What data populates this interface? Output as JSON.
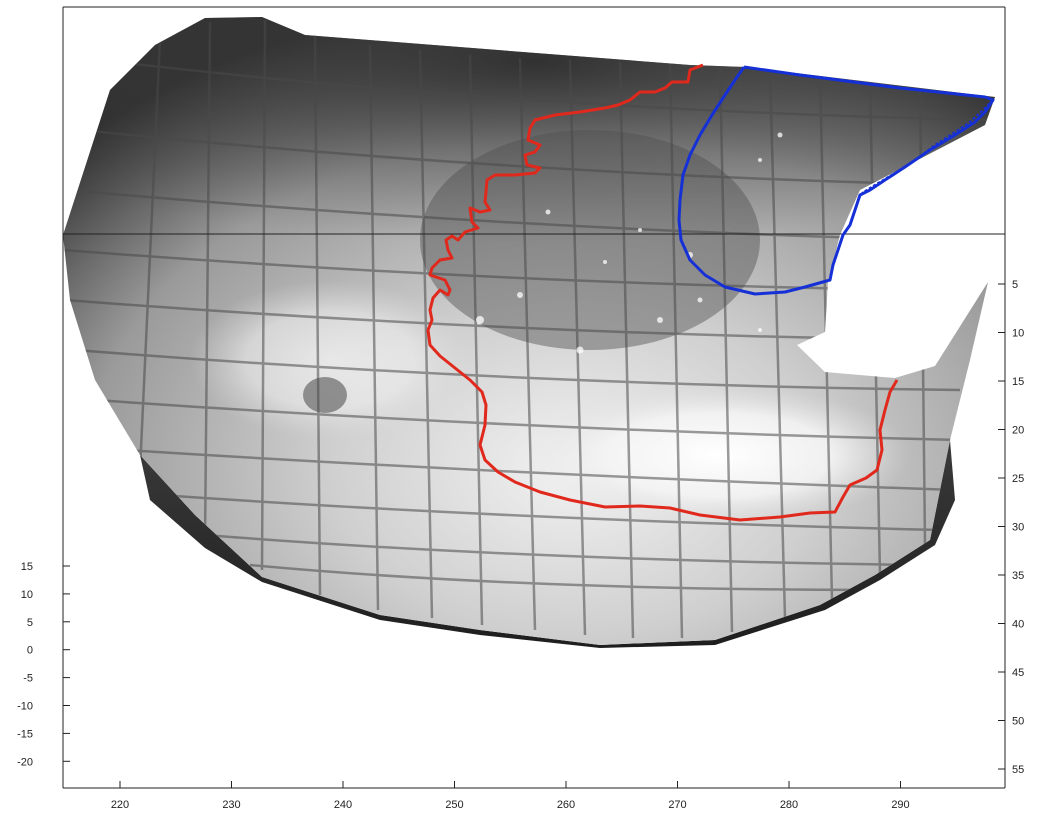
{
  "figure": {
    "colors": {
      "axis": "#222222",
      "red_contour": "#e0291c",
      "blue_contour": "#1530d6",
      "background": "#ffffff"
    },
    "x_axis": {
      "ticks": [
        "220",
        "230",
        "240",
        "250",
        "260",
        "270",
        "280",
        "290"
      ]
    },
    "left_axis": {
      "ticks": [
        "15",
        "10",
        "5",
        "0",
        "-5",
        "-10",
        "-15",
        "-20"
      ]
    },
    "right_axis": {
      "ticks": [
        "5",
        "10",
        "15",
        "20",
        "25",
        "30",
        "35",
        "40",
        "45",
        "50",
        "55"
      ]
    },
    "image": {
      "description_icon": "grayscale-tiled-mosaic-image"
    }
  }
}
